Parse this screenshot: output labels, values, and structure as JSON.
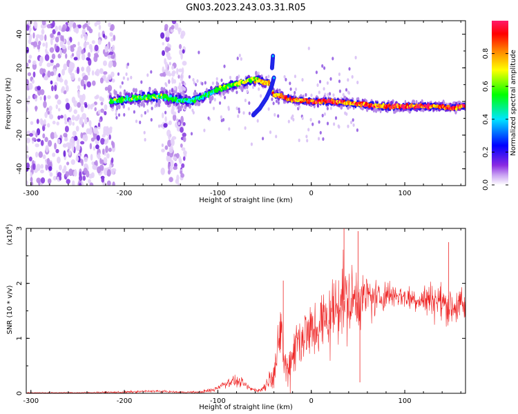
{
  "title": "GN03.2023.243.03.31.R05",
  "colors": {
    "snr_line": "#ee2222",
    "signal_core": "#ff2a2a",
    "signal_body": "#2222ee",
    "scatter": "#9a66ee",
    "axis": "#000000"
  },
  "chart_data": [
    {
      "type": "heatmap",
      "name": "spectrogram",
      "xlabel": "Height of straight line (km)",
      "ylabel": "Frequency (Hz)",
      "xlim": [
        -305,
        165
      ],
      "ylim": [
        -50,
        48
      ],
      "x_ticks": [
        -300,
        -200,
        -100,
        0,
        100
      ],
      "x_tick_labels": [
        "-300",
        "-200",
        "-100",
        "0",
        "100"
      ],
      "y_ticks": [
        -40,
        -20,
        0,
        20,
        40
      ],
      "y_tick_labels": [
        "-40",
        "-20",
        "0",
        "20",
        "40"
      ],
      "colorbar": {
        "label": "Normalized spectral amplitude",
        "range": [
          0,
          1
        ],
        "ticks": [
          0.0,
          0.2,
          0.4,
          0.6,
          0.8
        ],
        "tick_labels": [
          "0.0",
          "0.2",
          "0.4",
          "0.6",
          "0.8"
        ],
        "colormap": [
          "#ffffff",
          "#8a2be2",
          "#0000ff",
          "#00e5ff",
          "#00ff00",
          "#ffff00",
          "#ff8000",
          "#ff0000",
          "#ff1493"
        ]
      },
      "ridge": {
        "x": [
          -215,
          -190,
          -160,
          -130,
          -115,
          -100,
          -85,
          -70,
          -58,
          -50,
          -45,
          -40,
          -30,
          -20,
          0,
          20,
          40,
          60,
          80,
          100,
          120,
          140,
          150,
          160,
          165
        ],
        "frequency": [
          0,
          2,
          3,
          0,
          3,
          7,
          10,
          12,
          13,
          11,
          11,
          4,
          3,
          1,
          0,
          0,
          -1,
          -2,
          -3,
          -3,
          -3,
          -3,
          -4,
          -3,
          -3
        ],
        "amplitude": [
          0.45,
          0.5,
          0.5,
          0.4,
          0.45,
          0.5,
          0.55,
          0.6,
          0.65,
          0.7,
          0.7,
          0.75,
          0.8,
          0.85,
          0.9,
          0.9,
          0.85,
          0.85,
          0.85,
          0.9,
          0.9,
          0.85,
          0.9,
          0.85,
          0.85
        ]
      },
      "branch": {
        "x": [
          -62,
          -55,
          -48,
          -43,
          -40
        ],
        "frequency": [
          -8,
          -4,
          2,
          8,
          14
        ]
      },
      "spike": {
        "x": [
          -42,
          -41
        ],
        "frequency": [
          20,
          27
        ]
      },
      "noise_regions": [
        {
          "x_range": [
            -305,
            -210
          ],
          "frequency_range": [
            -50,
            48
          ]
        },
        {
          "x_range": [
            -160,
            -135
          ],
          "frequency_range": [
            -50,
            48
          ]
        }
      ]
    },
    {
      "type": "line",
      "name": "snr",
      "xlabel": "Height of straight line (km)",
      "ylabel": "SNR (10 * v/v)",
      "ylabel_multiplier": "(x10",
      "ylabel_multiplier_exponent": "4",
      "ylabel_multiplier_close": ")",
      "xlim": [
        -305,
        165
      ],
      "ylim": [
        0,
        3
      ],
      "x_ticks": [
        -300,
        -200,
        -100,
        0,
        100
      ],
      "x_tick_labels": [
        "-300",
        "-200",
        "-100",
        "0",
        "100"
      ],
      "y_ticks": [
        0,
        1,
        2,
        3
      ],
      "y_tick_labels": [
        "0",
        "1",
        "2",
        "3"
      ],
      "series": [
        {
          "name": "SNR",
          "x": [
            -305,
            -250,
            -200,
            -170,
            -140,
            -120,
            -105,
            -95,
            -85,
            -75,
            -65,
            -55,
            -50,
            -45,
            -40,
            -35,
            -32,
            -30,
            -25,
            -20,
            -15,
            -10,
            0,
            10,
            20,
            25,
            30,
            35,
            40,
            45,
            50,
            55,
            60,
            70,
            80,
            90,
            100,
            110,
            120,
            130,
            140,
            150,
            160,
            165
          ],
          "mean": [
            0.01,
            0.01,
            0.02,
            0.04,
            0.02,
            0.02,
            0.06,
            0.16,
            0.22,
            0.2,
            0.08,
            0.05,
            0.12,
            0.25,
            0.4,
            0.75,
            1.4,
            0.6,
            0.4,
            0.75,
            0.95,
            1.05,
            1.1,
            1.25,
            1.4,
            1.5,
            1.75,
            1.7,
            1.65,
            1.7,
            1.75,
            1.72,
            1.78,
            1.7,
            1.8,
            1.8,
            1.75,
            1.72,
            1.7,
            1.72,
            1.65,
            1.58,
            1.6,
            1.55
          ],
          "noise": [
            0.01,
            0.01,
            0.02,
            0.02,
            0.015,
            0.02,
            0.04,
            0.07,
            0.08,
            0.08,
            0.04,
            0.03,
            0.08,
            0.12,
            0.25,
            0.4,
            0.5,
            0.3,
            0.3,
            0.45,
            0.5,
            0.5,
            0.5,
            0.55,
            0.6,
            0.65,
            0.65,
            0.65,
            0.6,
            0.55,
            0.5,
            0.42,
            0.38,
            0.3,
            0.25,
            0.2,
            0.2,
            0.2,
            0.25,
            0.3,
            0.3,
            0.32,
            0.3,
            0.3
          ],
          "peaks": [
            {
              "x": -30,
              "y": 2.05
            },
            {
              "x": 35,
              "y": 3.0
            },
            {
              "x": 50,
              "y": 2.95
            },
            {
              "x": 147,
              "y": 2.75
            },
            {
              "x": 52,
              "y": 0.2
            }
          ]
        }
      ]
    }
  ]
}
